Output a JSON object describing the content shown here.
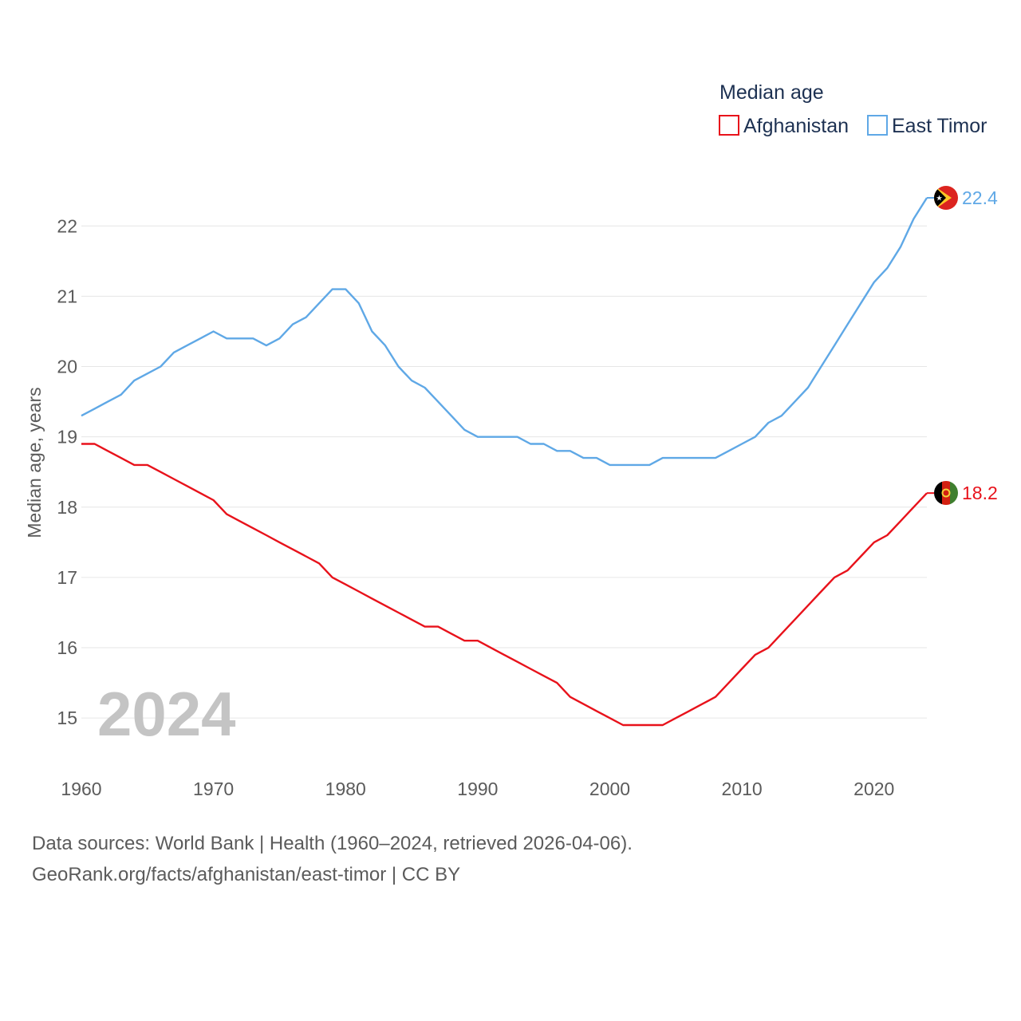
{
  "chart_data": {
    "type": "line",
    "legend_title": "Median age",
    "legend_placement": "top-right",
    "ylabel": "Median age, years",
    "year_label": "2024",
    "x_ticks": [
      1960,
      1970,
      1980,
      1990,
      2000,
      2010,
      2020
    ],
    "y_ticks": [
      15,
      16,
      17,
      18,
      19,
      20,
      21,
      22
    ],
    "xlim": [
      1960,
      2024
    ],
    "ylim": [
      14.2,
      22.4
    ],
    "series": [
      {
        "name": "Afghanistan",
        "color": "#e8121b",
        "flag_icon": "afghanistan-flag-icon",
        "end_label": "18.2",
        "x_start": 1960,
        "values": [
          18.9,
          18.9,
          18.8,
          18.7,
          18.6,
          18.6,
          18.5,
          18.4,
          18.3,
          18.2,
          18.1,
          17.9,
          17.8,
          17.7,
          17.6,
          17.5,
          17.4,
          17.3,
          17.2,
          17.0,
          16.9,
          16.8,
          16.7,
          16.6,
          16.5,
          16.4,
          16.3,
          16.3,
          16.2,
          16.1,
          16.1,
          16.0,
          15.9,
          15.8,
          15.7,
          15.6,
          15.5,
          15.3,
          15.2,
          15.1,
          15.0,
          14.9,
          14.9,
          14.9,
          14.9,
          15.0,
          15.1,
          15.2,
          15.3,
          15.5,
          15.7,
          15.9,
          16.0,
          16.2,
          16.4,
          16.6,
          16.8,
          17.0,
          17.1,
          17.3,
          17.5,
          17.6,
          17.8,
          18.0,
          18.2
        ]
      },
      {
        "name": "East Timor",
        "color": "#5fa8e6",
        "flag_icon": "east-timor-flag-icon",
        "end_label": "22.4",
        "x_start": 1960,
        "values": [
          19.3,
          19.4,
          19.5,
          19.6,
          19.8,
          19.9,
          20.0,
          20.2,
          20.3,
          20.4,
          20.5,
          20.4,
          20.4,
          20.4,
          20.3,
          20.4,
          20.6,
          20.7,
          20.9,
          21.1,
          21.1,
          20.9,
          20.5,
          20.3,
          20.0,
          19.8,
          19.7,
          19.5,
          19.3,
          19.1,
          19.0,
          19.0,
          19.0,
          19.0,
          18.9,
          18.9,
          18.8,
          18.8,
          18.7,
          18.7,
          18.6,
          18.6,
          18.6,
          18.6,
          18.7,
          18.7,
          18.7,
          18.7,
          18.7,
          18.8,
          18.9,
          19.0,
          19.2,
          19.3,
          19.5,
          19.7,
          20.0,
          20.3,
          20.6,
          20.9,
          21.2,
          21.4,
          21.7,
          22.1,
          22.4
        ]
      }
    ]
  },
  "footer": {
    "sources": "Data sources: World Bank | Health (1960–2024, retrieved 2026-04-06).",
    "credit": "GeoRank.org/facts/afghanistan/east-timor | CC BY"
  }
}
